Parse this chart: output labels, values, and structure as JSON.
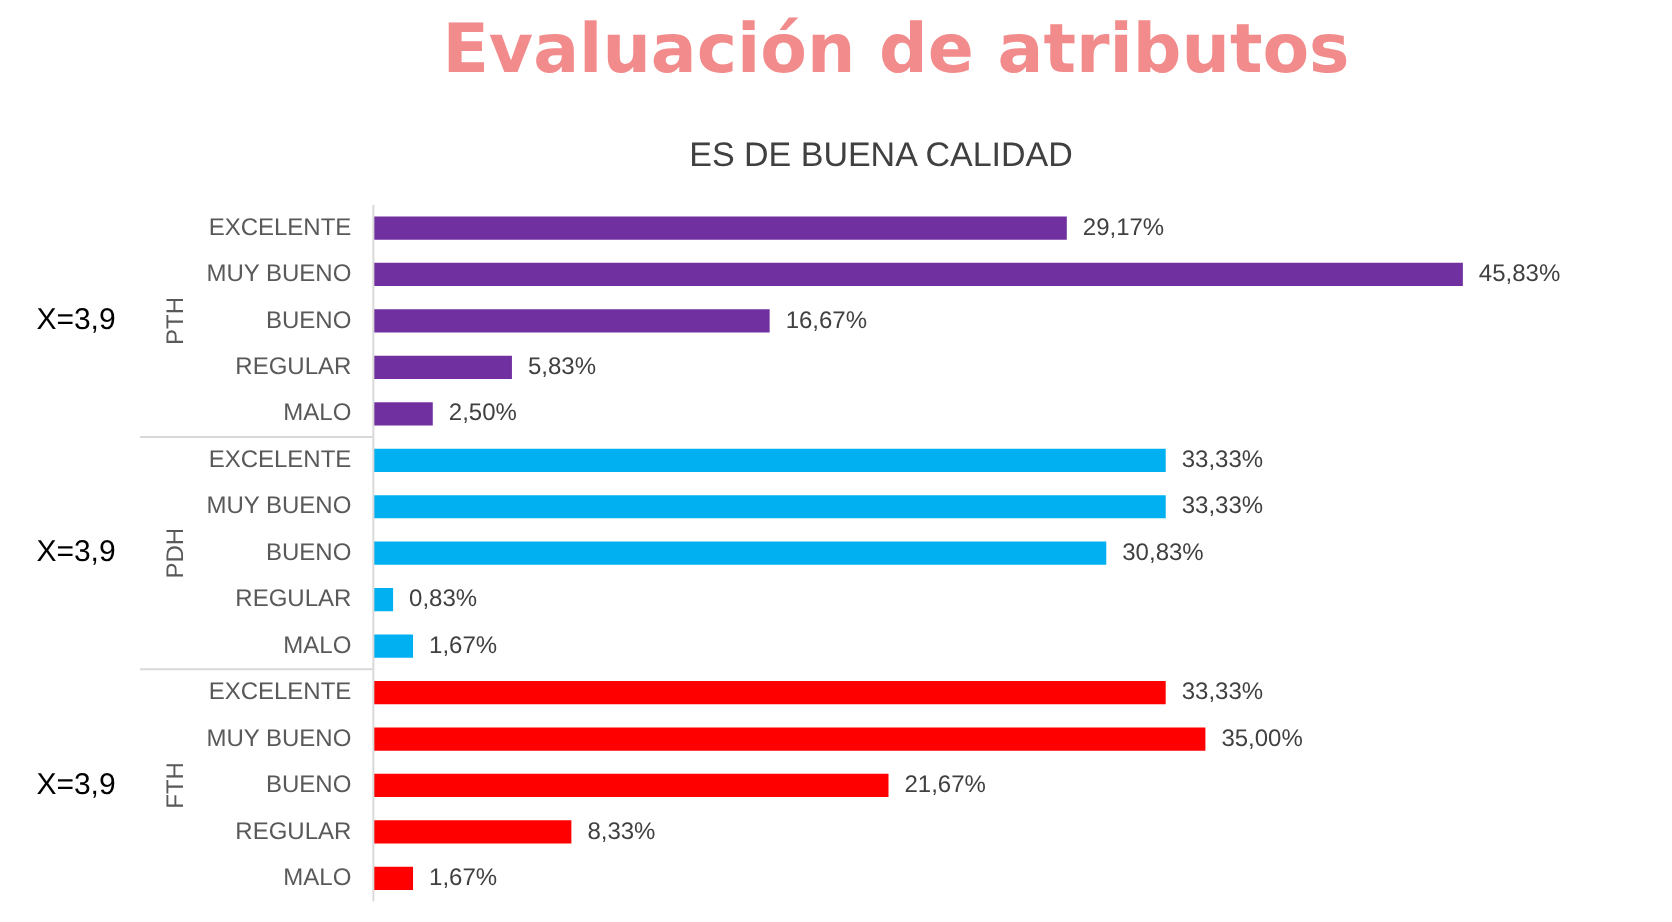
{
  "chart_data": {
    "type": "bar",
    "orientation": "horizontal",
    "title": "Evaluación de atributos",
    "subtitle": "ES DE BUENA CALIDAD",
    "categories": [
      "EXCELENTE",
      "MUY BUENO",
      "BUENO",
      "REGULAR",
      "MALO",
      "EXCELENTE",
      "MUY BUENO",
      "BUENO",
      "REGULAR",
      "MALO",
      "EXCELENTE",
      "MUY BUENO",
      "BUENO",
      "REGULAR",
      "MALO"
    ],
    "values": [
      29.17,
      45.83,
      16.67,
      5.83,
      2.5,
      33.33,
      33.33,
      30.83,
      0.83,
      1.67,
      33.33,
      35.0,
      21.67,
      8.33,
      1.67
    ],
    "colors": [
      "#7030a0",
      "#7030a0",
      "#7030a0",
      "#7030a0",
      "#7030a0",
      "#00b0f0",
      "#00b0f0",
      "#00b0f0",
      "#00b0f0",
      "#00b0f0",
      "#ff0000",
      "#ff0000",
      "#ff0000",
      "#ff0000",
      "#ff0000"
    ],
    "value_labels": [
      "29,17%",
      "45,83%",
      "16,67%",
      "5,83%",
      "2,50%",
      "33,33%",
      "33,33%",
      "30,83%",
      "0,83%",
      "1,67%",
      "33,33%",
      "35,00%",
      "21,67%",
      "8,33%",
      "1,67%"
    ],
    "annotations": [
      "X=3,9",
      "PTH",
      "X=3,9",
      "PDH",
      "X=3,9",
      "FTH"
    ],
    "grid": false,
    "legend": false
  }
}
